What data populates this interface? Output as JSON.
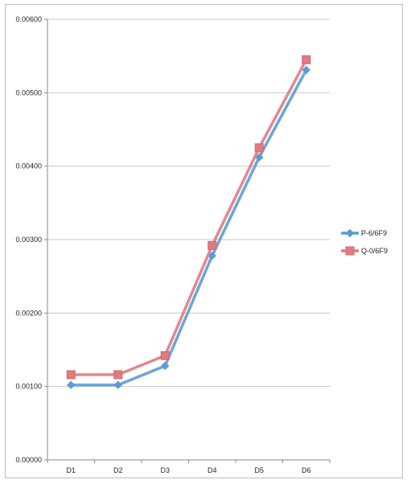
{
  "chart_data": {
    "type": "line",
    "categories": [
      "D1",
      "D2",
      "D3",
      "D4",
      "D5",
      "D6"
    ],
    "series": [
      {
        "name": "P-6/6F9",
        "values": [
          0.00102,
          0.00102,
          0.00128,
          0.00278,
          0.00412,
          0.00531
        ],
        "color": "#5b9bd5",
        "marker": "diamond"
      },
      {
        "name": "Q-0/6F9",
        "values": [
          0.00116,
          0.00116,
          0.00142,
          0.00292,
          0.00425,
          0.00545
        ],
        "color": "#e07b80",
        "marker": "square"
      }
    ],
    "ylim": [
      0,
      0.006
    ],
    "yticks": [
      0,
      0.001,
      0.002,
      0.003,
      0.004,
      0.005,
      0.006
    ],
    "ytick_labels": [
      "0.00000",
      "0.00100",
      "0.00200",
      "0.00300",
      "0.00400",
      "0.00500",
      "0.00600"
    ],
    "grid": true,
    "legend_position": "right"
  }
}
